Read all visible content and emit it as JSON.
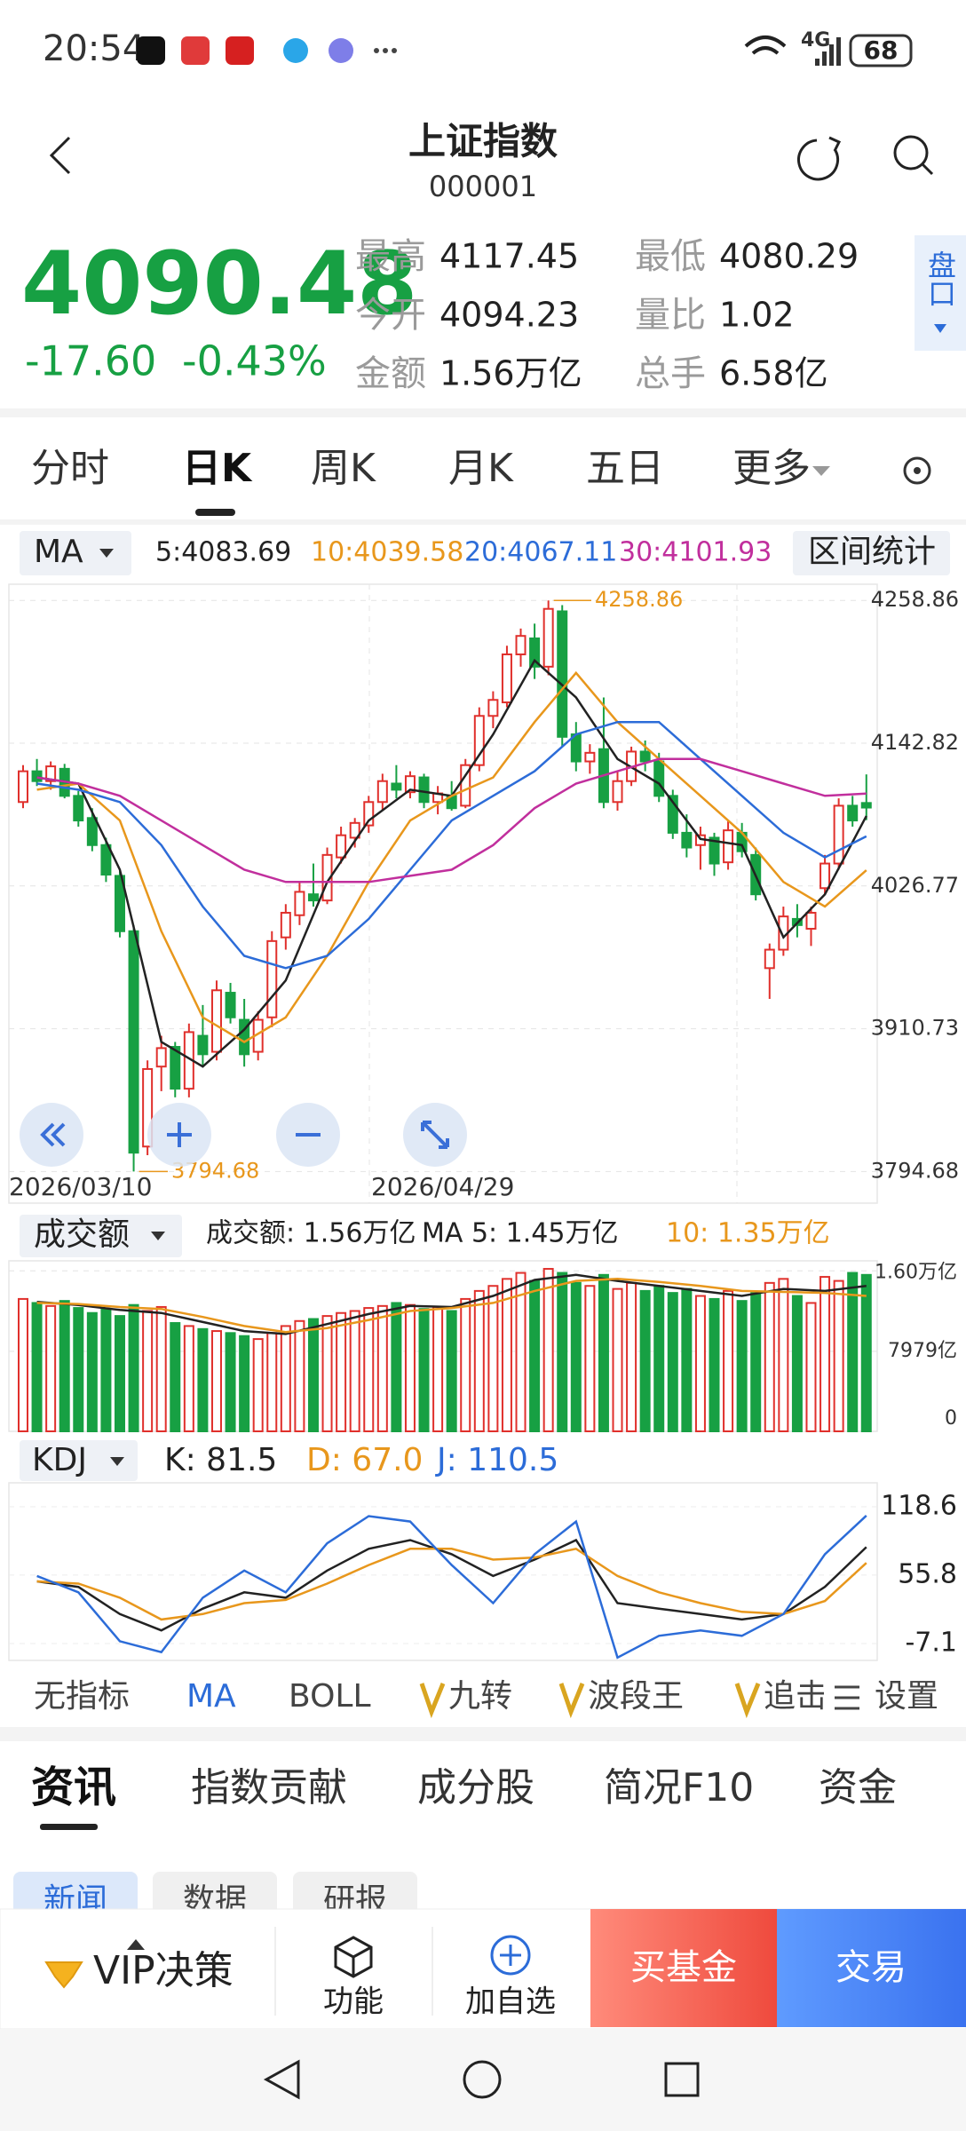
{
  "status_bar": {
    "time": "20:54",
    "network": "4G",
    "battery": "68"
  },
  "header": {
    "title": "上证指数",
    "code": "000001"
  },
  "quote": {
    "price": "4090.48",
    "change": "-17.60",
    "change_pct": "-0.43%",
    "color": "#17a043",
    "stats": [
      {
        "label": "最高",
        "value": "4117.45"
      },
      {
        "label": "最低",
        "value": "4080.29"
      },
      {
        "label": "今开",
        "value": "4094.23"
      },
      {
        "label": "量比",
        "value": "1.02"
      },
      {
        "label": "金额",
        "value": "1.56万亿"
      },
      {
        "label": "总手",
        "value": "6.58亿"
      }
    ]
  },
  "side_tab": "盘口",
  "period_tabs": [
    "分时",
    "日K",
    "周K",
    "月K",
    "五日",
    "更多"
  ],
  "kline": {
    "indicator": "MA",
    "range_stats": "区间统计",
    "up_color": "#e0302c",
    "down_color": "#17a043",
    "legend": [
      {
        "label": "5:4083.69",
        "color": "#222222"
      },
      {
        "label": "10:4039.58",
        "color": "#e8971c"
      },
      {
        "label": "20:4067.11",
        "color": "#2c6cd8"
      },
      {
        "label": "30:4101.93",
        "color": "#c12f9d"
      }
    ],
    "ylim": [
      3769,
      4272
    ],
    "yticks": [
      4258.86,
      4142.82,
      4026.77,
      3910.73,
      3794.68
    ],
    "x_labels": [
      "2026/03/10",
      "2026/04/29"
    ],
    "annotations": [
      4258.86,
      3794.68
    ],
    "ohlc": [
      [
        4095,
        4125,
        4090,
        4120
      ],
      [
        4120,
        4130,
        4108,
        4112
      ],
      [
        4112,
        4128,
        4105,
        4124
      ],
      [
        4122,
        4126,
        4098,
        4100
      ],
      [
        4100,
        4104,
        4075,
        4080
      ],
      [
        4082,
        4090,
        4055,
        4060
      ],
      [
        4060,
        4066,
        4030,
        4036
      ],
      [
        4035,
        4040,
        3985,
        3990
      ],
      [
        3990,
        3995,
        3794.68,
        3810
      ],
      [
        3815,
        3885,
        3808,
        3878
      ],
      [
        3880,
        3905,
        3860,
        3895
      ],
      [
        3896,
        3900,
        3855,
        3862
      ],
      [
        3862,
        3915,
        3855,
        3908
      ],
      [
        3905,
        3930,
        3880,
        3890
      ],
      [
        3892,
        3950,
        3885,
        3942
      ],
      [
        3940,
        3948,
        3915,
        3920
      ],
      [
        3918,
        3935,
        3880,
        3890
      ],
      [
        3892,
        3925,
        3885,
        3918
      ],
      [
        3920,
        3990,
        3912,
        3982
      ],
      [
        3985,
        4012,
        3975,
        4005
      ],
      [
        4003,
        4030,
        3995,
        4022
      ],
      [
        4020,
        4045,
        4010,
        4015
      ],
      [
        4015,
        4058,
        4012,
        4052
      ],
      [
        4050,
        4075,
        4045,
        4068
      ],
      [
        4066,
        4082,
        4058,
        4078
      ],
      [
        4076,
        4100,
        4070,
        4095
      ],
      [
        4095,
        4118,
        4088,
        4112
      ],
      [
        4110,
        4125,
        4098,
        4105
      ],
      [
        4103,
        4120,
        4098,
        4116
      ],
      [
        4115,
        4118,
        4090,
        4095
      ],
      [
        4095,
        4108,
        4085,
        4102
      ],
      [
        4100,
        4112,
        4088,
        4090
      ],
      [
        4092,
        4130,
        4090,
        4125
      ],
      [
        4125,
        4172,
        4120,
        4165
      ],
      [
        4165,
        4185,
        4155,
        4178
      ],
      [
        4176,
        4222,
        4172,
        4215
      ],
      [
        4215,
        4236,
        4205,
        4230
      ],
      [
        4228,
        4240,
        4195,
        4205
      ],
      [
        4205,
        4258.86,
        4198,
        4252
      ],
      [
        4250,
        4255,
        4140,
        4148
      ],
      [
        4150,
        4160,
        4120,
        4128
      ],
      [
        4128,
        4142,
        4118,
        4135
      ],
      [
        4138,
        4180,
        4090,
        4095
      ],
      [
        4095,
        4120,
        4088,
        4112
      ],
      [
        4112,
        4140,
        4108,
        4136
      ],
      [
        4136,
        4145,
        4120,
        4128
      ],
      [
        4128,
        4135,
        4095,
        4100
      ],
      [
        4100,
        4105,
        4065,
        4070
      ],
      [
        4070,
        4085,
        4050,
        4058
      ],
      [
        4060,
        4075,
        4040,
        4068
      ],
      [
        4066,
        4070,
        4035,
        4045
      ],
      [
        4046,
        4080,
        4040,
        4072
      ],
      [
        4070,
        4078,
        4050,
        4055
      ],
      [
        4052,
        4058,
        4015,
        4020
      ],
      [
        3960,
        3980,
        3935,
        3975
      ],
      [
        3975,
        4010,
        3970,
        4002
      ],
      [
        4000,
        4012,
        3985,
        3995
      ],
      [
        3992,
        4010,
        3978,
        4005
      ],
      [
        4025,
        4052,
        4020,
        4045
      ],
      [
        4045,
        4098,
        4040,
        4092
      ],
      [
        4092,
        4100,
        4075,
        4080
      ],
      [
        4094.23,
        4117.45,
        4080.29,
        4090.48
      ]
    ],
    "ma_x": [
      1,
      4,
      7,
      10,
      13,
      16,
      19,
      22,
      25,
      28,
      31,
      34,
      37,
      40,
      43,
      46,
      49,
      52,
      55,
      58,
      61
    ],
    "ma": [
      {
        "name": "5",
        "color": "#222222",
        "values": [
          4115,
          4110,
          4040,
          3900,
          3880,
          3910,
          3950,
          4030,
          4080,
          4105,
          4100,
          4150,
          4210,
          4180,
          4130,
          4110,
          4065,
          4060,
          3985,
          4020,
          4083.69
        ]
      },
      {
        "name": "10",
        "color": "#e8971c",
        "values": [
          4105,
          4110,
          4080,
          3990,
          3920,
          3900,
          3920,
          3970,
          4030,
          4080,
          4100,
          4115,
          4160,
          4200,
          4160,
          4130,
          4100,
          4070,
          4030,
          4010,
          4039.58
        ]
      },
      {
        "name": "20",
        "color": "#2c6cd8",
        "values": [
          4110,
          4105,
          4095,
          4060,
          4010,
          3970,
          3960,
          3970,
          4000,
          4040,
          4080,
          4100,
          4120,
          4150,
          4160,
          4160,
          4130,
          4100,
          4070,
          4050,
          4067.11
        ]
      },
      {
        "name": "30",
        "color": "#c12f9d",
        "values": [
          4115,
          4110,
          4100,
          4080,
          4060,
          4040,
          4030,
          4030,
          4030,
          4035,
          4040,
          4060,
          4090,
          4110,
          4120,
          4130,
          4130,
          4120,
          4110,
          4100,
          4101.93
        ]
      }
    ]
  },
  "volume": {
    "selector": "成交额",
    "legend": [
      {
        "label": "成交额: 1.56万亿",
        "color": "#222222"
      },
      {
        "label": "MA 5: 1.45万亿",
        "color": "#222222"
      },
      {
        "label": "10: 1.35万亿",
        "color": "#e8971c"
      }
    ],
    "ylim": [
      0,
      17000
    ],
    "yticks": [
      {
        "value": 16000,
        "label": "1.60万亿"
      },
      {
        "value": 7979,
        "label": "7979亿"
      },
      0
    ],
    "values": [
      13200,
      12800,
      12500,
      13000,
      12300,
      11800,
      12200,
      11500,
      12600,
      12000,
      12400,
      10800,
      10500,
      10200,
      10000,
      9800,
      9500,
      9200,
      9800,
      10500,
      11000,
      11200,
      11500,
      11800,
      12000,
      12300,
      12500,
      12800,
      12600,
      12200,
      12400,
      12000,
      13200,
      14000,
      14500,
      15200,
      15800,
      15000,
      16200,
      15800,
      14800,
      14500,
      15600,
      14200,
      14800,
      14000,
      14500,
      13800,
      14200,
      13500,
      13200,
      14000,
      13000,
      13800,
      14800,
      15200,
      13500,
      12800,
      15400,
      15000,
      15800,
      15600
    ],
    "ma": [
      {
        "name": "MA 5",
        "color": "#222222",
        "values": [
          12900,
          12600,
          12100,
          11800,
          10900,
          10000,
          9700,
          10700,
          11700,
          12500,
          12400,
          13500,
          15100,
          15600,
          15000,
          14500,
          14000,
          13500,
          14200,
          14000,
          14500
        ]
      },
      {
        "name": "10",
        "color": "#e8971c",
        "values": [
          12800,
          12700,
          12400,
          12200,
          11400,
          10500,
          9900,
          10300,
          11100,
          12000,
          12300,
          12800,
          14000,
          15000,
          15200,
          14900,
          14500,
          14000,
          13900,
          13800,
          13500
        ]
      }
    ]
  },
  "kdj": {
    "selector": "KDJ",
    "legend": [
      {
        "label": "K: 81.5",
        "color": "#222222"
      },
      {
        "label": "D: 67.0",
        "color": "#e8971c"
      },
      {
        "label": "J: 110.5",
        "color": "#2c6cd8"
      }
    ],
    "ylim": [
      -22.6,
      140.6
    ],
    "yticks": [
      118.6,
      55.8,
      -7.1
    ],
    "series": [
      {
        "name": "K",
        "color": "#222222",
        "values": [
          50,
          45,
          20,
          5,
          25,
          40,
          35,
          60,
          80,
          88,
          75,
          55,
          70,
          88,
          30,
          25,
          20,
          15,
          20,
          45,
          81.5
        ]
      },
      {
        "name": "D",
        "color": "#e8971c",
        "values": [
          50,
          48,
          35,
          15,
          20,
          30,
          33,
          48,
          65,
          80,
          80,
          70,
          72,
          80,
          55,
          40,
          30,
          22,
          20,
          32,
          67.0
        ]
      },
      {
        "name": "J",
        "color": "#2c6cd8",
        "values": [
          55,
          40,
          -5,
          -15,
          35,
          60,
          40,
          85,
          110,
          105,
          65,
          30,
          75,
          105,
          -20,
          0,
          5,
          0,
          20,
          75,
          110.5
        ]
      }
    ]
  },
  "indicator_tabs": [
    "无指标",
    "MA",
    "BOLL",
    "九转",
    "波段王",
    "追击"
  ],
  "settings": "设置",
  "news_tabs": [
    "资讯",
    "指数贡献",
    "成分股",
    "简况F10",
    "资金"
  ],
  "sub_tabs": [
    "新闻",
    "数据",
    "研报"
  ],
  "bottom_bar": [
    "VIP决策",
    "功能",
    "加自选",
    "买基金",
    "交易"
  ]
}
